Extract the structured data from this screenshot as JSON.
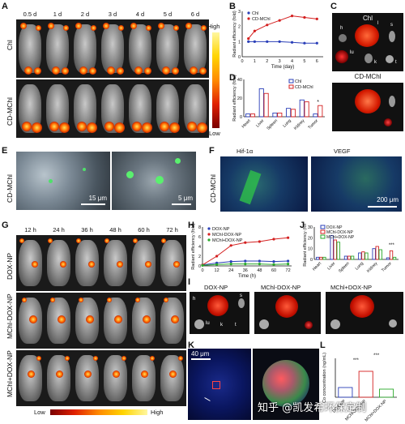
{
  "panels": {
    "A": {
      "label": "A",
      "times": [
        "0.5 d",
        "1 d",
        "2 d",
        "3 d",
        "4 d",
        "5 d",
        "6 d"
      ],
      "rows": [
        "Chl",
        "CD-MChl"
      ],
      "scale_high": "High",
      "scale_low": "Low"
    },
    "B": {
      "label": "B"
    },
    "C": {
      "label": "C",
      "top_title": "Chl",
      "bottom_title": "CD-MChl",
      "organ_letters": [
        "h",
        "l",
        "s",
        "lu",
        "k",
        "t"
      ]
    },
    "D": {
      "label": "D"
    },
    "E": {
      "label": "E",
      "row": "CD-MChl",
      "scale1": "15 μm",
      "scale2": "5 μm"
    },
    "F": {
      "label": "F",
      "row": "CD-MChl",
      "col1": "Hif-1α",
      "col2": "VEGF",
      "scale": "200 μm"
    },
    "G": {
      "label": "G",
      "times": [
        "12 h",
        "24 h",
        "36 h",
        "48 h",
        "60 h",
        "72 h"
      ],
      "rows": [
        "DOX-NP",
        "MChl-DOX-NP",
        "MChl+DOX-NP"
      ],
      "scale_low": "Low",
      "scale_high": "High"
    },
    "H": {
      "label": "H"
    },
    "I": {
      "label": "I",
      "titles": [
        "DOX-NP",
        "MChl-DOX-NP",
        "MChl+DOX-NP"
      ],
      "organ_letters": [
        "h",
        "s",
        "lu",
        "k",
        "t"
      ]
    },
    "J": {
      "label": "J"
    },
    "K": {
      "label": "K",
      "scale": "40 μm"
    },
    "L": {
      "label": "L"
    }
  },
  "chart_data": [
    {
      "id": "B",
      "type": "line",
      "x": [
        0.5,
        1,
        2,
        3,
        4,
        5,
        6
      ],
      "xlabel": "Time (day)",
      "ylabel": "Radiant efficiency (fold)",
      "xticks": [
        0,
        1,
        2,
        3,
        4,
        5,
        6
      ],
      "yticks": [
        0,
        1,
        2,
        3
      ],
      "xlim": [
        0,
        6.5
      ],
      "ylim": [
        0,
        3
      ],
      "series": [
        {
          "name": "Chl",
          "color": "#2a3fb8",
          "values": [
            1.0,
            1.0,
            1.0,
            1.0,
            0.95,
            0.9,
            0.9
          ]
        },
        {
          "name": "CD-MChl",
          "color": "#d42020",
          "values": [
            1.2,
            1.7,
            2.1,
            2.4,
            2.7,
            2.6,
            2.5
          ]
        }
      ]
    },
    {
      "id": "D",
      "type": "bar",
      "categories": [
        "Heart",
        "Liver",
        "Spleen",
        "Lung",
        "Kidney",
        "Tumor"
      ],
      "ylabel": "Radiant efficiency (fold)",
      "ylim": [
        0,
        40
      ],
      "yticks": [
        0,
        20,
        40
      ],
      "annotation": "*",
      "series": [
        {
          "name": "Chl",
          "color": "#2a3fb8",
          "values": [
            3,
            30,
            4,
            9,
            18,
            3
          ]
        },
        {
          "name": "CD-MChl",
          "color": "#d42020",
          "values": [
            3,
            25,
            4,
            8,
            16,
            12
          ]
        }
      ]
    },
    {
      "id": "H",
      "type": "line",
      "x": [
        0,
        12,
        24,
        36,
        48,
        60,
        72
      ],
      "xlabel": "Time (h)",
      "ylabel": "Radiant efficiency (fold)",
      "xticks": [
        0,
        12,
        24,
        36,
        48,
        60,
        72
      ],
      "yticks": [
        0,
        2,
        4,
        6,
        8
      ],
      "xlim": [
        0,
        75
      ],
      "ylim": [
        0,
        8
      ],
      "series": [
        {
          "name": "DOX-NP",
          "color": "#2a3fb8",
          "values": [
            0.2,
            0.6,
            0.9,
            1.0,
            1.0,
            0.9,
            1.0
          ]
        },
        {
          "name": "MChl-DOX-NP",
          "color": "#d42020",
          "values": [
            0.2,
            2.0,
            4.2,
            4.8,
            5.0,
            5.5,
            5.8
          ]
        },
        {
          "name": "MChl+DOX-NP",
          "color": "#2aa82a",
          "values": [
            0.1,
            0.3,
            0.4,
            0.4,
            0.4,
            0.3,
            0.4
          ]
        }
      ]
    },
    {
      "id": "J",
      "type": "bar",
      "categories": [
        "Heart",
        "Liver",
        "Spleen",
        "Lung",
        "Kidney",
        "Tumor"
      ],
      "ylabel": "Radiant efficiency (fold)",
      "ylim": [
        0,
        30
      ],
      "yticks": [
        0,
        10,
        20,
        30
      ],
      "annotation": "***",
      "series": [
        {
          "name": "DOX-NP",
          "color": "#2a3fb8",
          "values": [
            2,
            22,
            3,
            6,
            10,
            1.5
          ]
        },
        {
          "name": "MChl-DOX-NP",
          "color": "#d42020",
          "values": [
            2,
            18,
            3,
            7,
            12,
            8
          ]
        },
        {
          "name": "MChl+DOX-NP",
          "color": "#2aa82a",
          "values": [
            2,
            16,
            3,
            6,
            9,
            2
          ]
        }
      ]
    },
    {
      "id": "L",
      "type": "bar",
      "categories": [
        "DOX-NP",
        "MChl-DOX-NP",
        "MChl+DOX-NP"
      ],
      "ylabel": "Co concentration (ng/mL)",
      "ylim": [
        0,
        1.2
      ],
      "annotations": [
        "***",
        "***"
      ],
      "series": [
        {
          "name": "",
          "colors": [
            "#2a3fb8",
            "#d42020",
            "#2aa82a"
          ],
          "values": [
            0.3,
            0.8,
            0.25
          ]
        }
      ]
    }
  ],
  "watermark": "知乎 @凯发希环保定制"
}
